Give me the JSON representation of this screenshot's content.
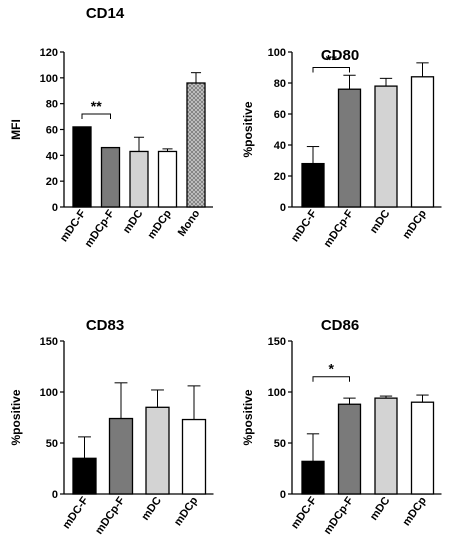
{
  "colors": {
    "black": "#000000",
    "dark_gray": "#7a7a7a",
    "light_gray": "#d3d3d3",
    "white": "#ffffff",
    "hatched": "#bdbdbd"
  },
  "chart_data": [
    {
      "type": "bar",
      "title": "CD14",
      "ylabel": "MFI",
      "ylim": [
        0,
        120
      ],
      "yticks": [
        0,
        20,
        40,
        60,
        80,
        100,
        120
      ],
      "categories": [
        "mDC-F",
        "mDCp-F",
        "mDC",
        "mDCp",
        "Mono"
      ],
      "values": [
        62,
        46,
        43,
        43,
        96
      ],
      "errors": [
        0,
        0,
        11,
        2,
        8
      ],
      "fills": [
        "black",
        "dark_gray",
        "light_gray",
        "white",
        "hatched"
      ],
      "significance": [
        {
          "from": 0,
          "to": 1,
          "label": "**",
          "y": 72
        }
      ]
    },
    {
      "type": "bar",
      "title": "CD80",
      "ylabel": "%positive",
      "ylim": [
        0,
        100
      ],
      "yticks": [
        0,
        20,
        40,
        60,
        80,
        100
      ],
      "categories": [
        "mDC-F",
        "mDCp-F",
        "mDC",
        "mDCp"
      ],
      "values": [
        28,
        76,
        78,
        84
      ],
      "errors": [
        11,
        9,
        5,
        9
      ],
      "fills": [
        "black",
        "dark_gray",
        "light_gray",
        "white"
      ],
      "significance": [
        {
          "from": 0,
          "to": 1,
          "label": "**",
          "y": 90
        }
      ]
    },
    {
      "type": "bar",
      "title": "CD83",
      "ylabel": "%positive",
      "ylim": [
        0,
        150
      ],
      "yticks": [
        0,
        50,
        100,
        150
      ],
      "categories": [
        "mDC-F",
        "mDCp-F",
        "mDC",
        "mDCp"
      ],
      "values": [
        35,
        74,
        85,
        73
      ],
      "errors": [
        21,
        35,
        17,
        33
      ],
      "fills": [
        "black",
        "dark_gray",
        "light_gray",
        "white"
      ],
      "significance": []
    },
    {
      "type": "bar",
      "title": "CD86",
      "ylabel": "%positive",
      "ylim": [
        0,
        150
      ],
      "yticks": [
        0,
        50,
        100,
        150
      ],
      "categories": [
        "mDC-F",
        "mDCp-F",
        "mDC",
        "mDCp"
      ],
      "values": [
        32,
        88,
        94,
        90
      ],
      "errors": [
        27,
        6,
        2,
        7
      ],
      "fills": [
        "black",
        "dark_gray",
        "light_gray",
        "white"
      ],
      "significance": [
        {
          "from": 0,
          "to": 1,
          "label": "*",
          "y": 115
        }
      ]
    }
  ]
}
